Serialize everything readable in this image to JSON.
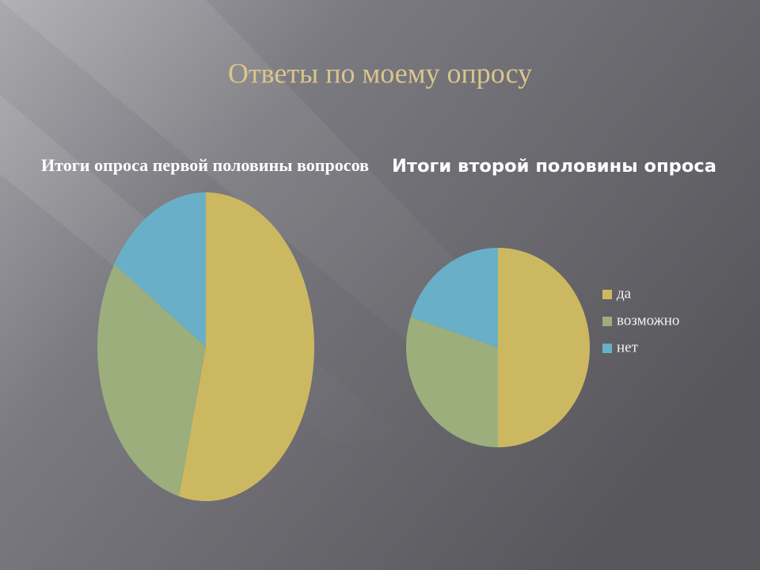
{
  "title": "Ответы по моему опросу",
  "chart_data": [
    {
      "type": "pie",
      "title": "Итоги опроса первой половины вопросов",
      "values": [
        54,
        30,
        16
      ],
      "colors": [
        "#cdb862",
        "#9bae7c",
        "#6aafc8"
      ]
    },
    {
      "type": "pie",
      "title": "Итоги второй половины опроса",
      "categories": [
        "да",
        "возможно",
        "нет"
      ],
      "values": [
        50,
        30,
        20
      ],
      "colors": [
        "#cdb862",
        "#9bae7c",
        "#6aafc8"
      ],
      "legend": "right"
    }
  ]
}
